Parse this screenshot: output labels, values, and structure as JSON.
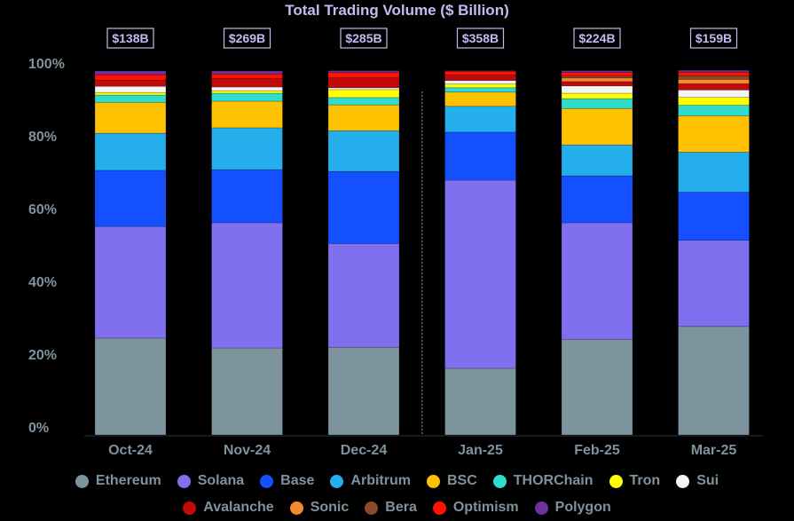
{
  "chart_data": {
    "type": "bar",
    "stacked": true,
    "normalized": true,
    "title": "Total Trading Volume ($ Billion)",
    "xlabel": "",
    "ylabel": "",
    "ylim": [
      0,
      100
    ],
    "yticks": [
      "0%",
      "20%",
      "40%",
      "60%",
      "80%",
      "100%"
    ],
    "categories": [
      "Oct-24",
      "Nov-24",
      "Dec-24",
      "Jan-25",
      "Feb-25",
      "Mar-25"
    ],
    "totals": [
      "$138B",
      "$269B",
      "$285B",
      "$358B",
      "$224B",
      "$159B"
    ],
    "separator_after_category": "Dec-24",
    "grid": false,
    "legend_position": "bottom",
    "series": [
      {
        "name": "Ethereum",
        "color": "#7d939e",
        "values": [
          26.6,
          23.9,
          24.1,
          18.3,
          26.3,
          29.8
        ]
      },
      {
        "name": "Solana",
        "color": "#8070f0",
        "values": [
          30.7,
          34.4,
          28.5,
          51.7,
          32.0,
          23.7
        ]
      },
      {
        "name": "Base",
        "color": "#1450ff",
        "values": [
          15.4,
          14.6,
          19.8,
          13.2,
          12.9,
          13.2
        ]
      },
      {
        "name": "Arbitrum",
        "color": "#25aeec",
        "values": [
          10.2,
          11.5,
          11.2,
          7.1,
          8.5,
          11.0
        ]
      },
      {
        "name": "BSC",
        "color": "#ffc200",
        "values": [
          8.5,
          7.3,
          7.1,
          3.9,
          10.0,
          10.0
        ]
      },
      {
        "name": "THORChain",
        "color": "#2edcd0",
        "values": [
          2.0,
          2.2,
          2.0,
          1.2,
          2.7,
          2.9
        ]
      },
      {
        "name": "Tron",
        "color": "#ffff00",
        "values": [
          0.7,
          0.7,
          2.2,
          1.0,
          1.5,
          2.2
        ]
      },
      {
        "name": "Sui",
        "color": "#f5f5f5",
        "values": [
          1.7,
          1.0,
          0.5,
          1.0,
          2.0,
          2.0
        ]
      },
      {
        "name": "Avalanche",
        "color": "#c20a0a",
        "values": [
          1.7,
          2.4,
          2.7,
          1.5,
          1.2,
          1.7
        ]
      },
      {
        "name": "Sonic",
        "color": "#f28a30",
        "values": [
          0,
          0,
          0,
          0,
          1.0,
          1.2
        ]
      },
      {
        "name": "Bera",
        "color": "#8a4a28",
        "values": [
          0,
          0,
          0,
          0,
          0.5,
          1.0
        ]
      },
      {
        "name": "Optimism",
        "color": "#ff1200",
        "values": [
          1.5,
          1.2,
          1.5,
          1.0,
          1.0,
          1.0
        ]
      },
      {
        "name": "Polygon",
        "color": "#7030a0",
        "values": [
          1.0,
          0.7,
          0.5,
          0.2,
          0.5,
          0.5
        ]
      }
    ]
  }
}
